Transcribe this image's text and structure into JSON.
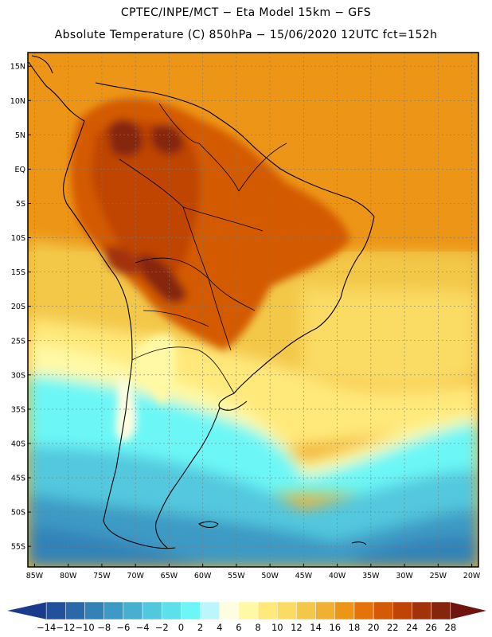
{
  "header": {
    "line1": "CPTEC/INPE/MCT  −   Eta Model 15km  −  GFS",
    "line2": "Absolute Temperature (C) 850hPa  −  15/06/2020 12UTC fct=152h"
  },
  "map": {
    "lat_ticks": [
      "15N",
      "10N",
      "5N",
      "EQ",
      "5S",
      "10S",
      "15S",
      "20S",
      "25S",
      "30S",
      "35S",
      "40S",
      "45S",
      "50S",
      "55S"
    ],
    "lon_ticks": [
      "85W",
      "80W",
      "75W",
      "70W",
      "65W",
      "60W",
      "55W",
      "50W",
      "45W",
      "40W",
      "35W",
      "30W",
      "25W",
      "20W"
    ],
    "lon_range": [
      -86,
      -19
    ],
    "lat_range": [
      17,
      -58
    ],
    "field": "temperature_850hPa"
  },
  "colorbar": {
    "labels": [
      "−14",
      "−12",
      "−10",
      "−8",
      "−6",
      "−4",
      "−2",
      "0",
      "2",
      "4",
      "6",
      "8",
      "10",
      "12",
      "14",
      "16",
      "18",
      "20",
      "22",
      "24",
      "26",
      "28"
    ],
    "colors": [
      "#1a3a8c",
      "#22509c",
      "#2b68aa",
      "#3282b8",
      "#3c9ac4",
      "#47b0d0",
      "#52c8de",
      "#5ee0ea",
      "#6cf7f6",
      "#bcf6fb",
      "#fffde0",
      "#fff9a6",
      "#ffe97a",
      "#fadb64",
      "#f3c84a",
      "#f0b032",
      "#ed9516",
      "#e6720a",
      "#d45a06",
      "#bf4406",
      "#a2320a",
      "#86250e",
      "#6e1510"
    ]
  }
}
